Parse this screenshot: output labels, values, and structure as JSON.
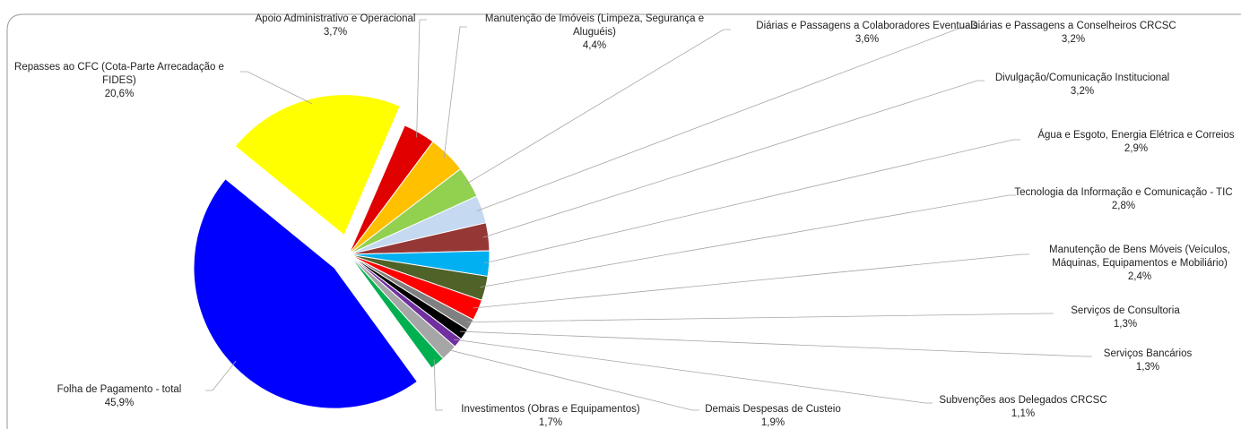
{
  "chart_data": {
    "type": "pie",
    "title": "",
    "slices": [
      {
        "label_lines": [
          "Folha de Pagamento - total"
        ],
        "pct": "45,9%",
        "value": 45.9,
        "color": "#0000FF",
        "exploded": true
      },
      {
        "label_lines": [
          "Repasses ao CFC (Cota-Parte Arrecadação e",
          "FIDES)"
        ],
        "pct": "20,6%",
        "value": 20.6,
        "color": "#FFFF00",
        "exploded": true
      },
      {
        "label_lines": [
          "Apoio Administrativo e Operacional"
        ],
        "pct": "3,7%",
        "value": 3.7,
        "color": "#E00000",
        "exploded": false
      },
      {
        "label_lines": [
          "Manutenção de Imóveis (Limpeza, Segurança e",
          "Aluguéis)"
        ],
        "pct": "4,4%",
        "value": 4.4,
        "color": "#FFC000",
        "exploded": false
      },
      {
        "label_lines": [
          "Diárias e Passagens a Colaboradores Eventuais"
        ],
        "pct": "3,6%",
        "value": 3.6,
        "color": "#92D050",
        "exploded": false
      },
      {
        "label_lines": [
          "Diárias e Passagens a Conselheiros CRCSC"
        ],
        "pct": "3,2%",
        "value": 3.2,
        "color": "#C5D9F1",
        "exploded": false
      },
      {
        "label_lines": [
          "Divulgação/Comunicação Institucional"
        ],
        "pct": "3,2%",
        "value": 3.2,
        "color": "#953735",
        "exploded": false
      },
      {
        "label_lines": [
          "Água e Esgoto, Energia Elétrica e Correios"
        ],
        "pct": "2,9%",
        "value": 2.9,
        "color": "#00B0F0",
        "exploded": false
      },
      {
        "label_lines": [
          "Tecnologia da Informação e Comunicação - TIC"
        ],
        "pct": "2,8%",
        "value": 2.8,
        "color": "#4F6228",
        "exploded": false
      },
      {
        "label_lines": [
          "Manutenção de Bens Móveis (Veículos,",
          "Máquinas, Equipamentos e Mobiliário)"
        ],
        "pct": "2,4%",
        "value": 2.4,
        "color": "#FF0000",
        "exploded": false
      },
      {
        "label_lines": [
          "Serviços de Consultoria"
        ],
        "pct": "1,3%",
        "value": 1.3,
        "color": "#808080",
        "exploded": false
      },
      {
        "label_lines": [
          "Serviços Bancários"
        ],
        "pct": "1,3%",
        "value": 1.3,
        "color": "#000000",
        "exploded": false
      },
      {
        "label_lines": [
          "Subvenções aos Delegados CRCSC"
        ],
        "pct": "1,1%",
        "value": 1.1,
        "color": "#7030A0",
        "exploded": false
      },
      {
        "label_lines": [
          "Demais Despesas de Custeio"
        ],
        "pct": "1,9%",
        "value": 1.9,
        "color": "#A6A6A6",
        "exploded": false
      },
      {
        "label_lines": [
          "Investimentos (Obras e Equipamentos)"
        ],
        "pct": "1,7%",
        "value": 1.7,
        "color": "#00B050",
        "exploded": false
      }
    ]
  }
}
